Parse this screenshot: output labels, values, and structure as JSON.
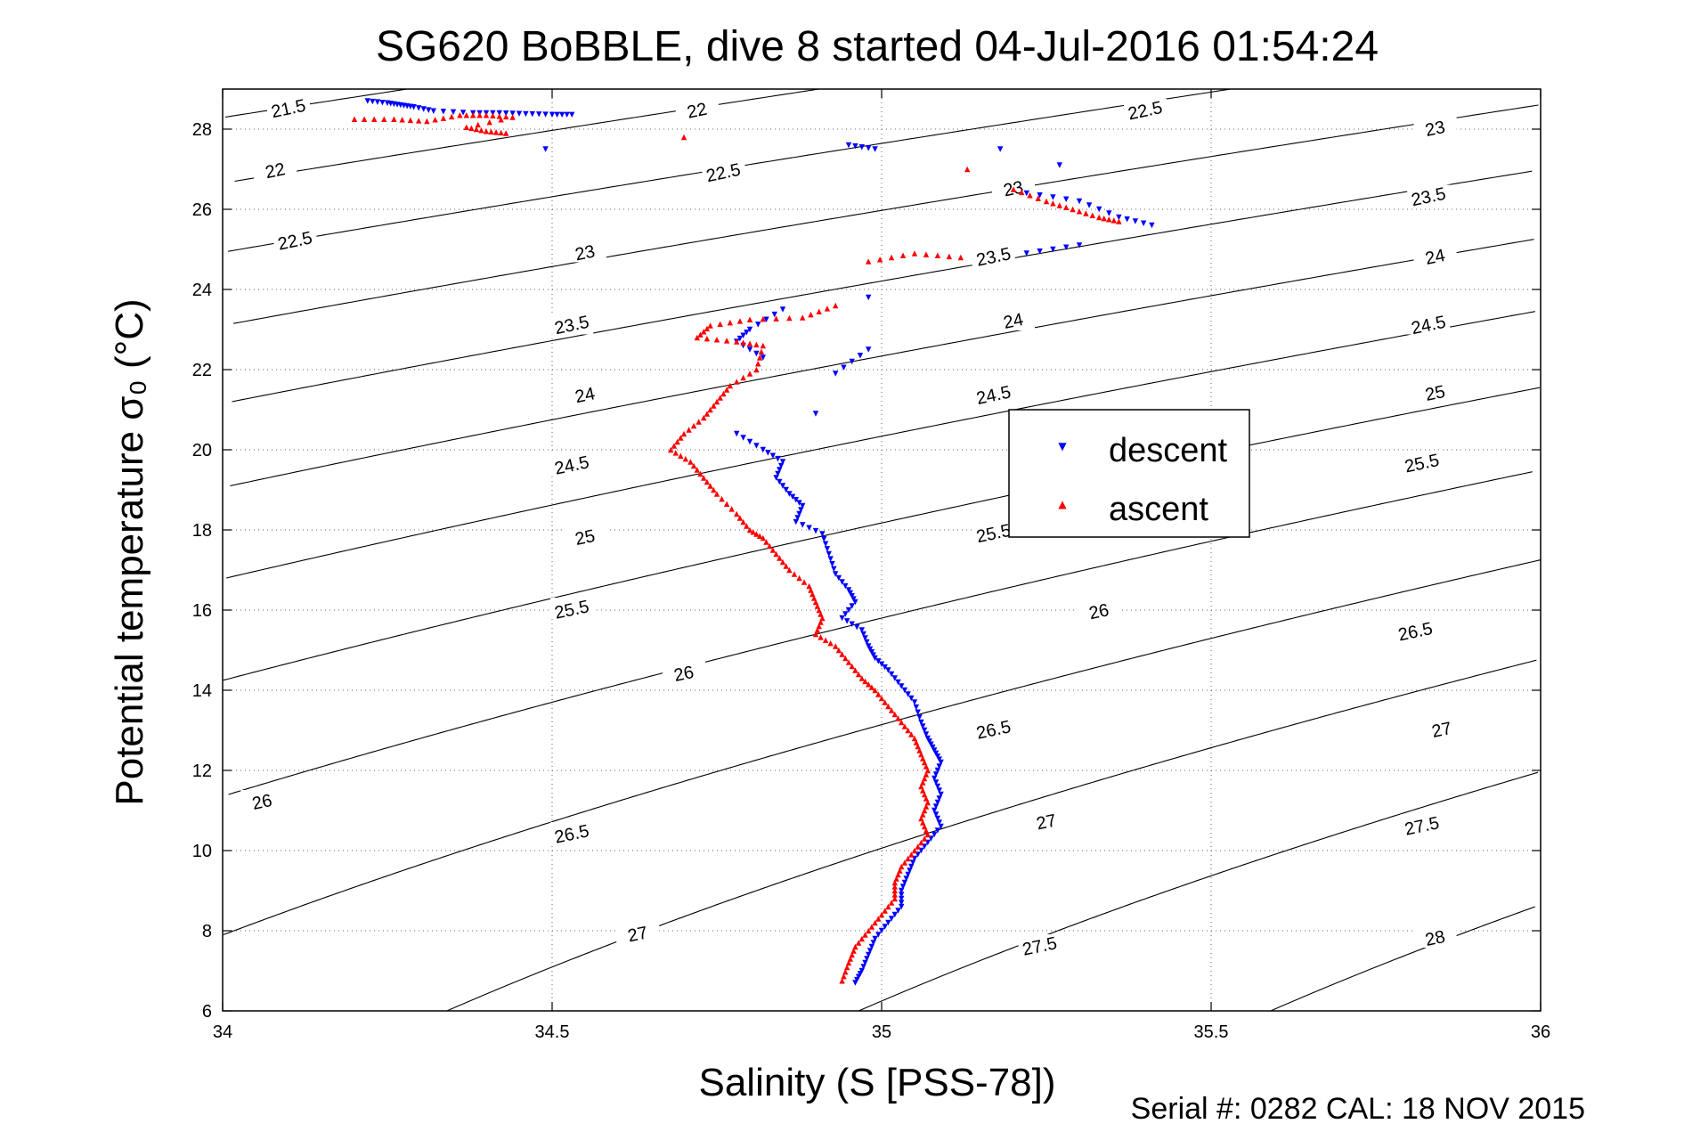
{
  "chart_data": {
    "type": "scatter",
    "title": "SG620 BoBBLE, dive 8 started 04-Jul-2016 01:54:24",
    "xlabel": "Salinity (S [PSS-78])",
    "ylabel": "Potential temperature σ₀ (°C)",
    "xlim": [
      34,
      36
    ],
    "ylim": [
      6,
      29
    ],
    "x_ticks": [
      "34",
      "34.5",
      "35",
      "35.5",
      "36"
    ],
    "y_ticks": [
      "6",
      "8",
      "10",
      "12",
      "14",
      "16",
      "18",
      "20",
      "22",
      "24",
      "26",
      "28"
    ],
    "grid": true,
    "legend_position": "center-right",
    "footer": "Serial #: 0282  CAL: 18 NOV 2015",
    "contours": {
      "levels": [
        21.5,
        22,
        22.5,
        23,
        23.5,
        24,
        24.5,
        25,
        25.5,
        26,
        26.5,
        27,
        27.5,
        28
      ],
      "labels": [
        {
          "text": "21.5",
          "s": 34.1,
          "t": 28.5
        },
        {
          "text": "22",
          "s": 34.72,
          "t": 28.45
        },
        {
          "text": "22.5",
          "s": 35.4,
          "t": 28.45
        },
        {
          "text": "22",
          "s": 34.08,
          "t": 26.95
        },
        {
          "text": "22.5",
          "s": 34.76,
          "t": 26.9
        },
        {
          "text": "23",
          "s": 35.2,
          "t": 26.5
        },
        {
          "text": "23",
          "s": 35.84,
          "t": 28.0
        },
        {
          "text": "22.5",
          "s": 34.11,
          "t": 25.2
        },
        {
          "text": "23",
          "s": 34.55,
          "t": 24.9
        },
        {
          "text": "23.5",
          "s": 35.17,
          "t": 24.8
        },
        {
          "text": "23.5",
          "s": 35.83,
          "t": 26.3
        },
        {
          "text": "24",
          "s": 35.84,
          "t": 24.8
        },
        {
          "text": "23.5",
          "s": 34.53,
          "t": 23.1
        },
        {
          "text": "24",
          "s": 35.2,
          "t": 23.2
        },
        {
          "text": "24.5",
          "s": 35.83,
          "t": 23.1
        },
        {
          "text": "24",
          "s": 34.55,
          "t": 21.35
        },
        {
          "text": "24.5",
          "s": 35.17,
          "t": 21.35
        },
        {
          "text": "25",
          "s": 35.84,
          "t": 21.4
        },
        {
          "text": "24.5",
          "s": 34.53,
          "t": 19.6
        },
        {
          "text": "25.5",
          "s": 35.82,
          "t": 19.65
        },
        {
          "text": "25",
          "s": 34.55,
          "t": 17.8
        },
        {
          "text": "25.5",
          "s": 35.17,
          "t": 17.9
        },
        {
          "text": "25.5",
          "s": 34.53,
          "t": 16.0
        },
        {
          "text": "26",
          "s": 35.33,
          "t": 15.95
        },
        {
          "text": "26.5",
          "s": 35.81,
          "t": 15.45
        },
        {
          "text": "26",
          "s": 34.7,
          "t": 14.4
        },
        {
          "text": "26.5",
          "s": 35.17,
          "t": 13.0
        },
        {
          "text": "27",
          "s": 35.85,
          "t": 13.0
        },
        {
          "text": "26",
          "s": 34.06,
          "t": 11.2
        },
        {
          "text": "27",
          "s": 35.25,
          "t": 10.7
        },
        {
          "text": "26.5",
          "s": 34.53,
          "t": 10.4
        },
        {
          "text": "27.5",
          "s": 35.82,
          "t": 10.6
        },
        {
          "text": "27",
          "s": 34.63,
          "t": 7.9
        },
        {
          "text": "27.5",
          "s": 35.24,
          "t": 7.6
        },
        {
          "text": "28",
          "s": 35.84,
          "t": 7.8
        }
      ]
    },
    "series": [
      {
        "name": "descent",
        "color": "#0000ff",
        "marker": "triangle-down",
        "points": [
          [
            34.22,
            28.7
          ],
          [
            34.25,
            28.65
          ],
          [
            34.27,
            28.6
          ],
          [
            34.29,
            28.55
          ],
          [
            34.32,
            28.45
          ],
          [
            34.38,
            28.4
          ],
          [
            34.42,
            28.4
          ],
          [
            34.46,
            28.38
          ],
          [
            34.5,
            28.36
          ],
          [
            34.53,
            28.36
          ],
          [
            34.49,
            27.5
          ],
          [
            34.95,
            27.6
          ],
          [
            34.99,
            27.5
          ],
          [
            35.18,
            27.5
          ],
          [
            35.27,
            27.1
          ],
          [
            35.22,
            26.4
          ],
          [
            35.3,
            26.2
          ],
          [
            35.36,
            25.8
          ],
          [
            35.41,
            25.6
          ],
          [
            35.3,
            25.1
          ],
          [
            35.22,
            24.9
          ],
          [
            34.98,
            23.8
          ],
          [
            34.85,
            23.5
          ],
          [
            34.8,
            23.0
          ],
          [
            34.78,
            22.7
          ],
          [
            34.82,
            22.3
          ],
          [
            34.98,
            22.5
          ],
          [
            34.93,
            21.9
          ],
          [
            34.9,
            20.9
          ],
          [
            34.78,
            20.4
          ],
          [
            34.82,
            20.0
          ],
          [
            34.85,
            19.7
          ],
          [
            34.84,
            19.3
          ],
          [
            34.86,
            18.9
          ],
          [
            34.88,
            18.6
          ],
          [
            34.87,
            18.2
          ],
          [
            34.91,
            17.9
          ],
          [
            34.92,
            17.4
          ],
          [
            34.93,
            16.9
          ],
          [
            34.95,
            16.5
          ],
          [
            34.96,
            16.2
          ],
          [
            34.94,
            15.8
          ],
          [
            34.97,
            15.5
          ],
          [
            34.98,
            15.1
          ],
          [
            34.99,
            14.8
          ],
          [
            35.01,
            14.5
          ],
          [
            35.03,
            14.1
          ],
          [
            35.05,
            13.7
          ],
          [
            35.06,
            13.2
          ],
          [
            35.07,
            12.8
          ],
          [
            35.08,
            12.5
          ],
          [
            35.09,
            12.2
          ],
          [
            35.08,
            11.8
          ],
          [
            35.09,
            11.4
          ],
          [
            35.08,
            11.0
          ],
          [
            35.09,
            10.6
          ],
          [
            35.07,
            10.2
          ],
          [
            35.05,
            9.8
          ],
          [
            35.04,
            9.4
          ],
          [
            35.03,
            9.0
          ],
          [
            35.03,
            8.6
          ],
          [
            35.01,
            8.2
          ],
          [
            34.99,
            7.8
          ],
          [
            34.98,
            7.4
          ],
          [
            34.97,
            7.0
          ],
          [
            34.96,
            6.7
          ]
        ]
      },
      {
        "name": "ascent",
        "color": "#ff0000",
        "marker": "triangle-up",
        "points": [
          [
            34.2,
            28.25
          ],
          [
            34.26,
            28.25
          ],
          [
            34.31,
            28.2
          ],
          [
            34.36,
            28.35
          ],
          [
            34.4,
            28.35
          ],
          [
            34.44,
            28.3
          ],
          [
            34.37,
            28.05
          ],
          [
            34.4,
            27.95
          ],
          [
            34.43,
            27.9
          ],
          [
            34.7,
            27.8
          ],
          [
            35.13,
            27.0
          ],
          [
            35.2,
            26.5
          ],
          [
            35.25,
            26.2
          ],
          [
            35.29,
            26.0
          ],
          [
            35.33,
            25.8
          ],
          [
            35.36,
            25.7
          ],
          [
            34.98,
            24.7
          ],
          [
            35.05,
            24.9
          ],
          [
            35.12,
            24.8
          ],
          [
            34.93,
            23.6
          ],
          [
            34.88,
            23.3
          ],
          [
            34.8,
            23.25
          ],
          [
            34.74,
            23.1
          ],
          [
            34.72,
            22.8
          ],
          [
            34.78,
            22.7
          ],
          [
            34.82,
            22.6
          ],
          [
            34.81,
            22.0
          ],
          [
            34.77,
            21.6
          ],
          [
            34.75,
            21.2
          ],
          [
            34.73,
            20.8
          ],
          [
            34.7,
            20.4
          ],
          [
            34.68,
            20.0
          ],
          [
            34.71,
            19.7
          ],
          [
            34.73,
            19.3
          ],
          [
            34.75,
            18.9
          ],
          [
            34.78,
            18.4
          ],
          [
            34.8,
            18.0
          ],
          [
            34.82,
            17.8
          ],
          [
            34.84,
            17.4
          ],
          [
            34.86,
            17.0
          ],
          [
            34.89,
            16.6
          ],
          [
            34.9,
            16.2
          ],
          [
            34.91,
            15.8
          ],
          [
            34.9,
            15.4
          ],
          [
            34.93,
            15.1
          ],
          [
            34.95,
            14.7
          ],
          [
            34.97,
            14.3
          ],
          [
            34.99,
            14.0
          ],
          [
            35.01,
            13.6
          ],
          [
            35.03,
            13.2
          ],
          [
            35.05,
            12.8
          ],
          [
            35.06,
            12.4
          ],
          [
            35.07,
            12.0
          ],
          [
            35.06,
            11.6
          ],
          [
            35.07,
            11.2
          ],
          [
            35.06,
            10.8
          ],
          [
            35.07,
            10.4
          ],
          [
            35.05,
            10.0
          ],
          [
            35.03,
            9.6
          ],
          [
            35.02,
            9.2
          ],
          [
            35.02,
            8.8
          ],
          [
            35.0,
            8.4
          ],
          [
            34.98,
            8.0
          ],
          [
            34.96,
            7.6
          ],
          [
            34.95,
            7.2
          ],
          [
            34.94,
            6.75
          ]
        ]
      }
    ]
  }
}
